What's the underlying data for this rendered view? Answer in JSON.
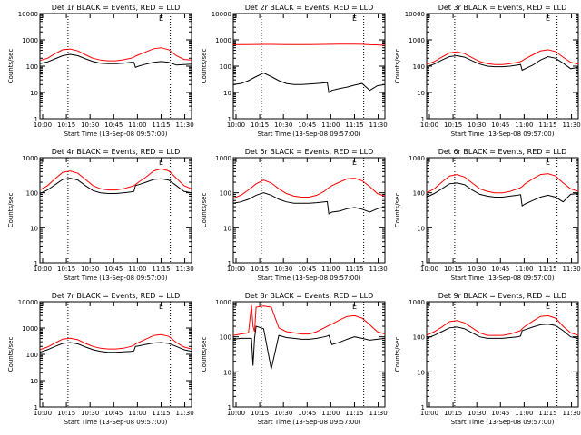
{
  "colors": {
    "events": "#000000",
    "lld": "#ff0000",
    "background": "#ffffff",
    "axis": "#000000"
  },
  "figure": {
    "ylabel": "Counts/sec",
    "xlabel": "Start Time (13-Sep-08 09:57:00)",
    "corner_label": "E"
  },
  "chart_data": [
    {
      "type": "line",
      "title": "Det 1r BLACK = Events, RED = LLD",
      "xlabel": "Start Time (13-Sep-08 09:57:00)",
      "ylabel": "Counts/sec",
      "y_scale": "log",
      "ylim": [
        1,
        10000
      ],
      "y_ticks": [
        "1",
        "10",
        "100",
        "1000",
        "10000"
      ],
      "x_ticks": [
        "10:00",
        "10:15",
        "10:30",
        "10:45",
        "11:00",
        "11:15",
        "11:30"
      ],
      "xlim": [
        0,
        100
      ],
      "x": [
        0,
        5,
        10,
        15,
        20,
        25,
        30,
        35,
        40,
        45,
        50,
        55,
        60,
        62,
        63,
        65,
        70,
        75,
        80,
        85,
        90,
        95,
        100
      ],
      "dotted_lines": [
        18.5,
        86
      ],
      "series": [
        {
          "name": "Events",
          "color": "#000000",
          "values": [
            125,
            145,
            190,
            250,
            280,
            250,
            190,
            150,
            130,
            125,
            125,
            130,
            140,
            140,
            90,
            100,
            120,
            140,
            150,
            140,
            110,
            115,
            120
          ]
        },
        {
          "name": "LLD",
          "color": "#ff0000",
          "values": [
            165,
            200,
            300,
            420,
            450,
            380,
            270,
            200,
            170,
            160,
            160,
            175,
            200,
            220,
            240,
            270,
            350,
            460,
            500,
            420,
            250,
            180,
            170
          ]
        }
      ]
    },
    {
      "type": "line",
      "title": "Det 2r BLACK = Events, RED = LLD",
      "xlabel": "Start Time (13-Sep-08 09:57:00)",
      "ylabel": "Counts/sec",
      "y_scale": "log",
      "ylim": [
        1,
        10000
      ],
      "y_ticks": [
        "1",
        "10",
        "100",
        "1000",
        "10000"
      ],
      "x_ticks": [
        "10:00",
        "10:15",
        "10:30",
        "10:45",
        "11:00",
        "11:15",
        "11:30"
      ],
      "xlim": [
        0,
        100
      ],
      "x": [
        0,
        5,
        10,
        15,
        20,
        25,
        30,
        35,
        40,
        45,
        50,
        55,
        60,
        62,
        63,
        65,
        70,
        75,
        80,
        85,
        90,
        95,
        100
      ],
      "dotted_lines": [
        18.5,
        86
      ],
      "series": [
        {
          "name": "Events",
          "color": "#000000",
          "values": [
            20,
            22,
            28,
            40,
            55,
            40,
            28,
            22,
            20,
            20,
            21,
            22,
            23,
            24,
            10,
            12,
            14,
            16,
            19,
            22,
            12,
            18,
            20
          ]
        },
        {
          "name": "LLD",
          "color": "#ff0000",
          "values": [
            650,
            655,
            660,
            665,
            670,
            670,
            665,
            660,
            655,
            655,
            660,
            665,
            670,
            675,
            680,
            680,
            685,
            690,
            690,
            680,
            650,
            640,
            620
          ]
        }
      ]
    },
    {
      "type": "line",
      "title": "Det 3r BLACK = Events, RED = LLD",
      "xlabel": "Start Time (13-Sep-08 09:57:00)",
      "ylabel": "Counts/sec",
      "y_scale": "log",
      "ylim": [
        1,
        10000
      ],
      "y_ticks": [
        "1",
        "10",
        "100",
        "1000",
        "10000"
      ],
      "x_ticks": [
        "10:00",
        "10:15",
        "10:30",
        "10:45",
        "11:00",
        "11:15",
        "11:30"
      ],
      "xlim": [
        0,
        100
      ],
      "x": [
        0,
        5,
        10,
        15,
        20,
        25,
        30,
        35,
        40,
        45,
        50,
        55,
        60,
        62,
        63,
        65,
        70,
        75,
        80,
        85,
        90,
        95,
        100
      ],
      "dotted_lines": [
        18.5,
        86
      ],
      "series": [
        {
          "name": "Events",
          "color": "#000000",
          "values": [
            95,
            120,
            170,
            230,
            250,
            220,
            160,
            120,
            100,
            95,
            95,
            100,
            110,
            115,
            70,
            80,
            110,
            170,
            230,
            200,
            130,
            80,
            90
          ]
        },
        {
          "name": "LLD",
          "color": "#ff0000",
          "values": [
            115,
            150,
            220,
            320,
            350,
            300,
            210,
            150,
            125,
            115,
            115,
            125,
            140,
            150,
            160,
            190,
            270,
            380,
            420,
            360,
            220,
            140,
            120
          ]
        }
      ]
    },
    {
      "type": "line",
      "title": "Det 4r BLACK = Events, RED = LLD",
      "xlabel": "Start Time (13-Sep-08 09:57:00)",
      "ylabel": "Counts/sec",
      "y_scale": "log",
      "ylim": [
        1,
        1000
      ],
      "y_ticks": [
        "1",
        "10",
        "100",
        "1000"
      ],
      "x_ticks": [
        "10:00",
        "10:15",
        "10:30",
        "10:45",
        "11:00",
        "11:15",
        "11:30"
      ],
      "xlim": [
        0,
        100
      ],
      "x": [
        0,
        5,
        10,
        15,
        20,
        25,
        30,
        35,
        40,
        45,
        50,
        55,
        60,
        62,
        63,
        65,
        70,
        75,
        80,
        85,
        90,
        95,
        100
      ],
      "dotted_lines": [
        18.5,
        86
      ],
      "series": [
        {
          "name": "Events",
          "color": "#000000",
          "values": [
            95,
            120,
            170,
            240,
            260,
            230,
            160,
            115,
            100,
            95,
            95,
            100,
            105,
            110,
            160,
            170,
            200,
            240,
            250,
            230,
            160,
            110,
            100
          ]
        },
        {
          "name": "LLD",
          "color": "#ff0000",
          "values": [
            120,
            160,
            250,
            380,
            420,
            360,
            240,
            160,
            130,
            120,
            120,
            130,
            150,
            160,
            170,
            200,
            280,
            420,
            480,
            420,
            260,
            160,
            130
          ]
        }
      ]
    },
    {
      "type": "line",
      "title": "Det 5r BLACK = Events, RED = LLD",
      "xlabel": "Start Time (13-Sep-08 09:57:00)",
      "ylabel": "Counts/sec",
      "y_scale": "log",
      "ylim": [
        1,
        1000
      ],
      "y_ticks": [
        "1",
        "10",
        "100",
        "1000"
      ],
      "x_ticks": [
        "10:00",
        "10:15",
        "10:30",
        "10:45",
        "11:00",
        "11:15",
        "11:30"
      ],
      "xlim": [
        0,
        100
      ],
      "x": [
        0,
        5,
        10,
        15,
        20,
        25,
        30,
        35,
        40,
        45,
        50,
        55,
        60,
        62,
        63,
        65,
        70,
        75,
        80,
        85,
        90,
        95,
        100
      ],
      "dotted_lines": [
        18.5,
        86
      ],
      "series": [
        {
          "name": "Events",
          "color": "#000000",
          "values": [
            50,
            55,
            65,
            85,
            100,
            85,
            65,
            55,
            50,
            50,
            50,
            52,
            55,
            56,
            25,
            28,
            30,
            35,
            38,
            34,
            28,
            35,
            40
          ]
        },
        {
          "name": "LLD",
          "color": "#ff0000",
          "values": [
            70,
            85,
            120,
            180,
            230,
            190,
            130,
            95,
            80,
            75,
            75,
            85,
            110,
            130,
            140,
            160,
            200,
            250,
            260,
            220,
            150,
            95,
            80
          ]
        }
      ]
    },
    {
      "type": "line",
      "title": "Det 6r BLACK = Events, RED = LLD",
      "xlabel": "Start Time (13-Sep-08 09:57:00)",
      "ylabel": "Counts/sec",
      "y_scale": "log",
      "ylim": [
        1,
        1000
      ],
      "y_ticks": [
        "1",
        "10",
        "100",
        "1000"
      ],
      "x_ticks": [
        "10:00",
        "10:15",
        "10:30",
        "10:45",
        "11:00",
        "11:15",
        "11:30"
      ],
      "xlim": [
        0,
        100
      ],
      "x": [
        0,
        5,
        10,
        15,
        20,
        25,
        30,
        35,
        40,
        45,
        50,
        55,
        60,
        62,
        63,
        65,
        70,
        75,
        80,
        85,
        90,
        95,
        100
      ],
      "dotted_lines": [
        18.5,
        86
      ],
      "series": [
        {
          "name": "Events",
          "color": "#000000",
          "values": [
            75,
            95,
            130,
            180,
            190,
            170,
            120,
            90,
            80,
            75,
            75,
            80,
            85,
            88,
            42,
            48,
            60,
            75,
            85,
            75,
            55,
            90,
            95
          ]
        },
        {
          "name": "LLD",
          "color": "#ff0000",
          "values": [
            100,
            130,
            200,
            300,
            330,
            280,
            190,
            130,
            110,
            100,
            100,
            110,
            130,
            140,
            150,
            180,
            250,
            330,
            350,
            300,
            190,
            130,
            110
          ]
        }
      ]
    },
    {
      "type": "line",
      "title": "Det 7r BLACK = Events, RED = LLD",
      "xlabel": "Start Time (13-Sep-08 09:57:00)",
      "ylabel": "Counts/sec",
      "y_scale": "log",
      "ylim": [
        1,
        10000
      ],
      "y_ticks": [
        "1",
        "10",
        "100",
        "1000",
        "10000"
      ],
      "x_ticks": [
        "10:00",
        "10:15",
        "10:30",
        "10:45",
        "11:00",
        "11:15",
        "11:30"
      ],
      "xlim": [
        0,
        100
      ],
      "x": [
        0,
        5,
        10,
        15,
        20,
        25,
        30,
        35,
        40,
        45,
        50,
        55,
        60,
        62,
        63,
        65,
        70,
        75,
        80,
        85,
        90,
        95,
        100
      ],
      "dotted_lines": [
        18.5,
        86
      ],
      "series": [
        {
          "name": "Events",
          "color": "#000000",
          "values": [
            120,
            150,
            200,
            260,
            280,
            250,
            190,
            150,
            130,
            120,
            120,
            125,
            130,
            135,
            200,
            210,
            240,
            270,
            280,
            260,
            200,
            150,
            130
          ]
        },
        {
          "name": "LLD",
          "color": "#ff0000",
          "values": [
            150,
            190,
            270,
            380,
            410,
            360,
            260,
            200,
            170,
            160,
            160,
            170,
            200,
            220,
            250,
            280,
            380,
            520,
            560,
            480,
            280,
            190,
            160
          ]
        }
      ]
    },
    {
      "type": "line",
      "title": "Det 8r BLACK = Events, RED = LLD",
      "xlabel": "Start Time (13-Sep-08 09:57:00)",
      "ylabel": "Counts/sec",
      "y_scale": "log",
      "ylim": [
        1,
        1000
      ],
      "y_ticks": [
        "1",
        "10",
        "100",
        "1000"
      ],
      "x_ticks": [
        "10:00",
        "10:15",
        "10:30",
        "10:45",
        "11:00",
        "11:15",
        "11:30"
      ],
      "xlim": [
        0,
        100
      ],
      "x": [
        0,
        5,
        10,
        12,
        13,
        14,
        15,
        20,
        25,
        30,
        35,
        40,
        45,
        50,
        55,
        60,
        62,
        63,
        65,
        70,
        75,
        80,
        85,
        90,
        95,
        100
      ],
      "dotted_lines": [
        18.5,
        86
      ],
      "series": [
        {
          "name": "Events",
          "color": "#000000",
          "values": [
            85,
            90,
            90,
            90,
            15,
            90,
            200,
            170,
            12,
            110,
            95,
            90,
            85,
            85,
            90,
            100,
            105,
            110,
            60,
            70,
            85,
            100,
            90,
            80,
            85,
            90
          ]
        },
        {
          "name": "LLD",
          "color": "#ff0000",
          "values": [
            110,
            120,
            130,
            800,
            200,
            140,
            700,
            750,
            700,
            180,
            140,
            130,
            120,
            120,
            140,
            180,
            200,
            210,
            230,
            300,
            380,
            400,
            340,
            220,
            140,
            120
          ]
        }
      ]
    },
    {
      "type": "line",
      "title": "Det 9r BLACK = Events, RED = LLD",
      "xlabel": "Start Time (13-Sep-08 09:57:00)",
      "ylabel": "Counts/sec",
      "y_scale": "log",
      "ylim": [
        1,
        1000
      ],
      "y_ticks": [
        "1",
        "10",
        "100",
        "1000"
      ],
      "x_ticks": [
        "10:00",
        "10:15",
        "10:30",
        "10:45",
        "11:00",
        "11:15",
        "11:30"
      ],
      "xlim": [
        0,
        100
      ],
      "x": [
        0,
        5,
        10,
        15,
        20,
        25,
        30,
        35,
        40,
        45,
        50,
        55,
        60,
        62,
        63,
        65,
        70,
        75,
        80,
        85,
        90,
        95,
        100
      ],
      "dotted_lines": [
        18.5,
        86
      ],
      "series": [
        {
          "name": "Events",
          "color": "#000000",
          "values": [
            90,
            110,
            140,
            180,
            190,
            170,
            130,
            100,
            90,
            90,
            90,
            95,
            100,
            105,
            150,
            160,
            190,
            220,
            230,
            210,
            150,
            100,
            90
          ]
        },
        {
          "name": "LLD",
          "color": "#ff0000",
          "values": [
            110,
            140,
            190,
            270,
            290,
            250,
            180,
            130,
            110,
            110,
            110,
            120,
            140,
            150,
            170,
            200,
            280,
            380,
            400,
            340,
            200,
            130,
            110
          ]
        }
      ]
    }
  ]
}
